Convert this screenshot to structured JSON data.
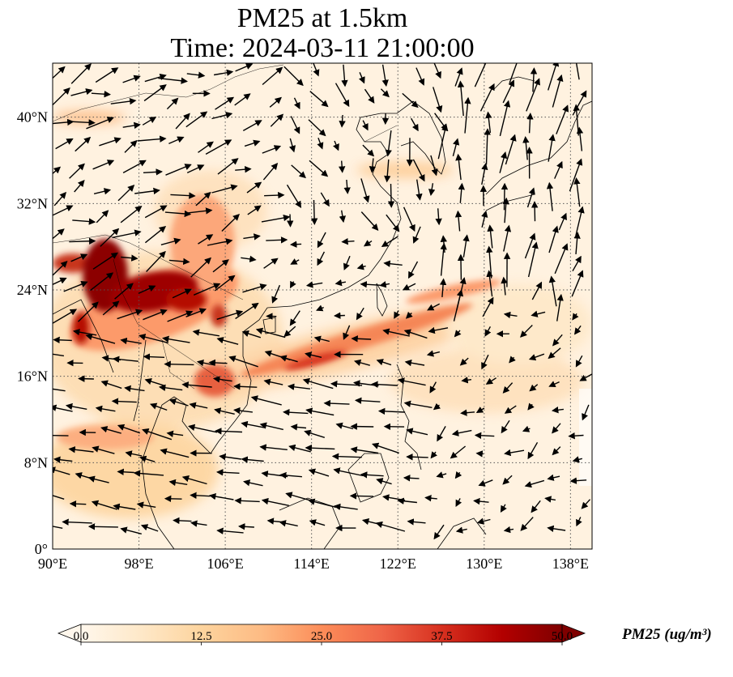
{
  "title": {
    "line1": "PM25 at 1.5km",
    "line2": "Time: 2024-03-11 21:00:00"
  },
  "map": {
    "extent": {
      "lon": [
        90,
        140
      ],
      "lat": [
        0,
        45
      ]
    },
    "lon_ticks": [
      90,
      98,
      106,
      114,
      122,
      130,
      138
    ],
    "lat_ticks": [
      0,
      8,
      16,
      24,
      32,
      40
    ],
    "lon_labels": [
      "90°E",
      "98°E",
      "106°E",
      "114°E",
      "122°E",
      "130°E",
      "138°E"
    ],
    "lat_labels": [
      "0°",
      "8°N",
      "16°N",
      "24°N",
      "32°N",
      "40°N"
    ],
    "gridlines": "dotted",
    "overlay": "wind vectors (quiver)",
    "coastlines": true,
    "borders": true
  },
  "colorbar": {
    "label": "PM25 (ug/m³)",
    "cmap": "OrRd",
    "min": 0.0,
    "max": 50.0,
    "ticks": [
      "0.0",
      "12.5",
      "25.0",
      "37.5",
      "50.0"
    ],
    "extend": "both",
    "colors": [
      "#fff7ec",
      "#fee8c8",
      "#fdd49e",
      "#fdbb84",
      "#fc8d59",
      "#ef6548",
      "#d7301f",
      "#b30000",
      "#7f0000"
    ]
  }
}
